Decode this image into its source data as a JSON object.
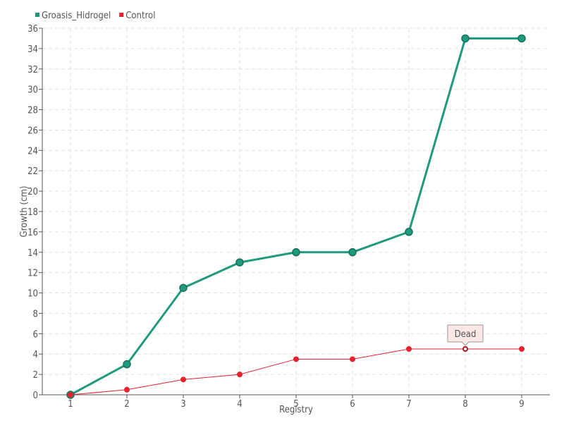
{
  "chart_data": {
    "type": "line",
    "title": "",
    "xlabel": "Registry",
    "ylabel": "Growth (cm)",
    "categories": [
      "1",
      "2",
      "3",
      "4",
      "5",
      "6",
      "7",
      "8",
      "9"
    ],
    "ylim": [
      0,
      36
    ],
    "yticks": [
      0,
      2,
      4,
      6,
      8,
      10,
      12,
      14,
      16,
      18,
      20,
      22,
      24,
      26,
      28,
      30,
      32,
      34,
      36
    ],
    "grid": true,
    "legend_position": "top-left",
    "series": [
      {
        "name": "Groasis_Hidrogel",
        "color": "#1f9a7d",
        "values": [
          0,
          3,
          10.5,
          13,
          14,
          14,
          16,
          35,
          35
        ]
      },
      {
        "name": "Control",
        "color": "#e5222f",
        "values": [
          0,
          0.5,
          1.5,
          2,
          3.5,
          3.5,
          4.5,
          4.5,
          4.5
        ]
      }
    ],
    "annotations": [
      {
        "series": "Control",
        "category": "8",
        "text": "Dead"
      }
    ]
  }
}
